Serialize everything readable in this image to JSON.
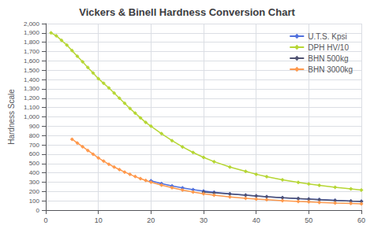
{
  "chart_data": {
    "type": "line",
    "title": "Vickers & Binell Hardness Conversion Chart",
    "ylabel": "Hardness Scale",
    "xlim": [
      0,
      60
    ],
    "xticks": [
      0,
      10,
      20,
      30,
      40,
      50,
      60
    ],
    "ylim": [
      0,
      2000
    ],
    "yticks": [
      0,
      100,
      200,
      300,
      400,
      500,
      600,
      700,
      800,
      900,
      1000,
      1100,
      1200,
      1300,
      1400,
      1500,
      1600,
      1700,
      1800,
      1900,
      2000
    ],
    "grid": true,
    "legend": "upper right",
    "marker": "diamond",
    "series": [
      {
        "name": "U.T.S. Kpsi",
        "x": [
          20,
          22,
          24,
          26,
          28,
          30,
          32,
          35,
          38,
          40,
          42,
          45,
          48,
          50,
          52,
          55,
          58,
          60
        ],
        "values": [
          315,
          285,
          260,
          238,
          220,
          205,
          192,
          175,
          160,
          152,
          144,
          133,
          123,
          118,
          113,
          105,
          98,
          94
        ]
      },
      {
        "name": "DPH HV/10",
        "x": [
          1,
          2,
          3,
          4,
          5,
          6,
          7,
          8,
          9,
          10,
          11,
          12,
          13,
          14,
          15,
          16,
          17,
          18,
          19,
          20,
          22,
          24,
          26,
          28,
          30,
          32,
          35,
          38,
          40,
          42,
          45,
          48,
          50,
          52,
          55,
          58,
          60
        ],
        "values": [
          1900,
          1870,
          1820,
          1770,
          1710,
          1650,
          1590,
          1530,
          1470,
          1410,
          1360,
          1310,
          1255,
          1200,
          1145,
          1090,
          1040,
          990,
          940,
          900,
          820,
          745,
          678,
          618,
          565,
          520,
          462,
          415,
          385,
          358,
          325,
          297,
          280,
          265,
          245,
          228,
          215
        ]
      },
      {
        "name": "BHN 500kg",
        "x": [
          30,
          32,
          35,
          38,
          40,
          42,
          45,
          48,
          50,
          52,
          55,
          58,
          60
        ],
        "values": [
          195,
          185,
          172,
          160,
          152,
          144,
          133,
          124,
          118,
          112,
          104,
          97,
          93
        ]
      },
      {
        "name": "BHN 3000kg",
        "x": [
          5,
          6,
          7,
          8,
          9,
          10,
          11,
          12,
          13,
          14,
          15,
          16,
          17,
          18,
          19,
          20,
          22,
          24,
          26,
          28,
          30,
          32,
          35,
          38,
          40,
          42,
          45,
          48,
          50,
          52,
          55,
          58,
          60
        ],
        "values": [
          760,
          720,
          680,
          640,
          600,
          560,
          525,
          492,
          462,
          435,
          408,
          383,
          360,
          338,
          318,
          300,
          268,
          240,
          215,
          194,
          175,
          160,
          142,
          127,
          118,
          111,
          101,
          93,
          88,
          83,
          77,
          72,
          68
        ]
      }
    ]
  }
}
